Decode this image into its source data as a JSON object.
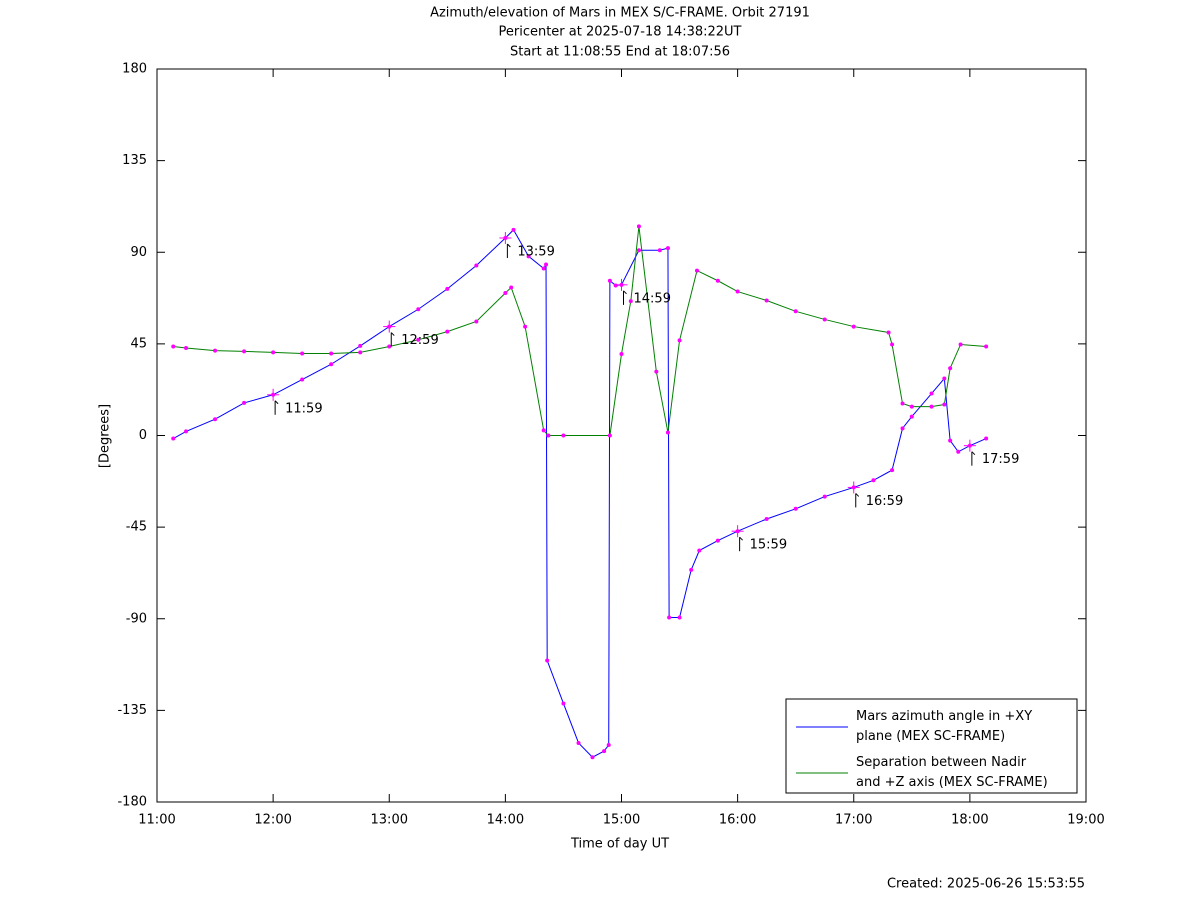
{
  "chart_data": {
    "type": "line",
    "title": [
      "Azimuth/elevation of Mars in MEX S/C-FRAME.  Orbit 27191",
      "Pericenter at 2025-07-18 14:38:22UT",
      "Start at 11:08:55 End at 18:07:56"
    ],
    "x_label": "Time of day UT",
    "y_label": "[Degrees]",
    "footer": "Created: 2025-06-26 15:53:55",
    "xlim": [
      11,
      19
    ],
    "xticks": [
      {
        "value": 11,
        "label": "11:00"
      },
      {
        "value": 12,
        "label": "12:00"
      },
      {
        "value": 13,
        "label": "13:00"
      },
      {
        "value": 14,
        "label": "14:00"
      },
      {
        "value": 15,
        "label": "15:00"
      },
      {
        "value": 16,
        "label": "16:00"
      },
      {
        "value": 17,
        "label": "17:00"
      },
      {
        "value": 18,
        "label": "18:00"
      },
      {
        "value": 19,
        "label": "19:00"
      }
    ],
    "ylim": [
      -180,
      180
    ],
    "yticks": [
      -180,
      -135,
      -90,
      -45,
      0,
      45,
      90,
      135,
      180
    ],
    "grid": false,
    "legend": "bottom-right",
    "marker_color": "#ff00ff",
    "series": [
      {
        "name": "Mars azimuth angle in +XY\nplane (MEX SC-FRAME)",
        "color": "#0000ff",
        "x": [
          11.14,
          11.25,
          11.5,
          11.75,
          12.0,
          12.25,
          12.5,
          12.75,
          13.0,
          13.25,
          13.5,
          13.75,
          14.0,
          14.07,
          14.2,
          14.33,
          14.35,
          14.36,
          14.5,
          14.63,
          14.75,
          14.85,
          14.89,
          14.9,
          14.95,
          15.0,
          15.15,
          15.33,
          15.4,
          15.41,
          15.5,
          15.6,
          15.67,
          15.83,
          16.0,
          16.25,
          16.5,
          16.75,
          17.0,
          17.17,
          17.33,
          17.42,
          17.5,
          17.67,
          17.78,
          17.83,
          17.9,
          18.0,
          18.14
        ],
        "values": [
          -1.5,
          2,
          8,
          16,
          20,
          27.5,
          35,
          44,
          53.5,
          62,
          72,
          83.5,
          97,
          101,
          88,
          82,
          84,
          -110.5,
          -131.6,
          -151,
          -158,
          -155,
          -152,
          76,
          73.7,
          74,
          91,
          91,
          92,
          -89.4,
          -89.4,
          -66,
          -56.5,
          -51.6,
          -47,
          -41,
          -36,
          -30,
          -25.5,
          -22,
          -17,
          3.5,
          9.3,
          20.6,
          28,
          -2.5,
          -8,
          -5,
          -1.5
        ]
      },
      {
        "name": "Separation between Nadir\nand +Z axis (MEX SC-FRAME)",
        "color": "#008000",
        "x": [
          11.14,
          11.25,
          11.5,
          11.75,
          12.0,
          12.25,
          12.5,
          12.75,
          13.0,
          13.25,
          13.5,
          13.75,
          14.0,
          14.05,
          14.17,
          14.33,
          14.37,
          14.5,
          14.9,
          15.0,
          15.08,
          15.15,
          15.3,
          15.4,
          15.5,
          15.65,
          15.83,
          16.0,
          16.25,
          16.5,
          16.75,
          17.0,
          17.3,
          17.33,
          17.42,
          17.5,
          17.67,
          17.78,
          17.83,
          17.92,
          18.14
        ],
        "values": [
          43.7,
          43,
          41.7,
          41.3,
          40.8,
          40.3,
          40.3,
          40.8,
          43.7,
          47,
          51,
          56,
          70,
          72.7,
          53.5,
          2.5,
          0,
          0,
          0,
          40,
          66,
          102.7,
          31.4,
          1.5,
          46.7,
          81,
          76,
          70.7,
          66.3,
          61,
          57,
          53.5,
          50.6,
          44.7,
          15.7,
          14.2,
          14.2,
          15.2,
          33,
          44.7,
          43.7
        ]
      }
    ],
    "annotations": [
      {
        "text": "11:59",
        "x": 12.0,
        "y": 20
      },
      {
        "text": "12:59",
        "x": 13.0,
        "y": 53.5
      },
      {
        "text": "13:59",
        "x": 14.0,
        "y": 97
      },
      {
        "text": "14:59",
        "x": 15.0,
        "y": 74
      },
      {
        "text": "15:59",
        "x": 16.0,
        "y": -47
      },
      {
        "text": "16:59",
        "x": 17.0,
        "y": -25.5
      },
      {
        "text": "17:59",
        "x": 18.0,
        "y": -5
      }
    ]
  }
}
